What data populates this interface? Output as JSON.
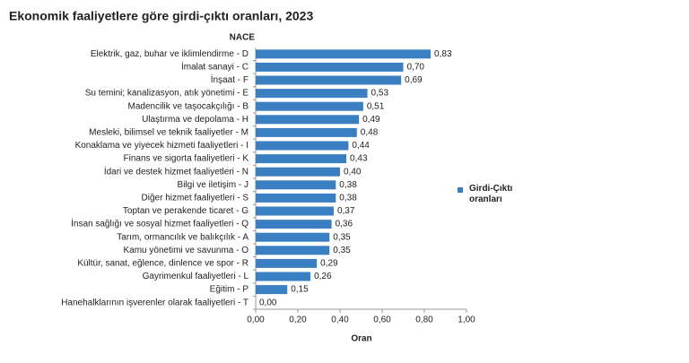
{
  "chart_data": {
    "type": "bar",
    "orientation": "horizontal",
    "title": "Ekonomik faaliyetlere göre girdi-çıktı oranları, 2023",
    "y_label": "NACE",
    "x_label": "Oran",
    "categories": [
      "Elektrik, gaz, buhar ve iklimlendirme - D",
      "İmalat sanayi - C",
      "İnşaat - F",
      "Su temini; kanalizasyon, atık yönetimi - E",
      "Madencilik ve taşocakçılığı - B",
      "Ulaştırma ve depolama - H",
      "Mesleki, bilimsel ve teknik faaliyetler - M",
      "Konaklama ve yiyecek hizmeti faaliyetleri - I",
      "Finans ve sigorta faaliyetleri - K",
      "İdari ve destek hizmet faaliyetleri - N",
      "Bilgi ve iletişim - J",
      "Diğer hizmet faaliyetleri - S",
      "Toptan ve perakende ticaret - G",
      "İnsan sağlığı ve sosyal hizmet faaliyetleri - Q",
      "Tarım, ormancılık ve balıkçılık - A",
      "Kamu yönetimi ve savunma - O",
      "Kültür, sanat, eğlence, dinlence ve spor - R",
      "Gayrimenkul faaliyetleri - L",
      "Eğitim - P",
      "Hanehalklarının işverenler olarak  faaliyetleri - T"
    ],
    "series": [
      {
        "name": "Girdi-Çıktı oranları",
        "color": "#3a7fc1",
        "values": [
          0.83,
          0.7,
          0.69,
          0.53,
          0.51,
          0.49,
          0.48,
          0.44,
          0.43,
          0.4,
          0.38,
          0.38,
          0.37,
          0.36,
          0.35,
          0.35,
          0.29,
          0.26,
          0.15,
          0.0
        ],
        "value_labels": [
          "0,83",
          "0,70",
          "0,69",
          "0,53",
          "0,51",
          "0,49",
          "0,48",
          "0,44",
          "0,43",
          "0,40",
          "0,38",
          "0,38",
          "0,37",
          "0,36",
          "0,35",
          "0,35",
          "0,29",
          "0,26",
          "0,15",
          "0,00"
        ]
      }
    ],
    "xlim": [
      0,
      1
    ],
    "xticks": [
      {
        "value": 0,
        "label": "0,00"
      },
      {
        "value": 0.2,
        "label": "0,20"
      },
      {
        "value": 0.4,
        "label": "0,40"
      },
      {
        "value": 0.6,
        "label": "0,60"
      },
      {
        "value": 0.8,
        "label": "0,80"
      },
      {
        "value": 1,
        "label": "1,00"
      }
    ],
    "legend": "right"
  }
}
